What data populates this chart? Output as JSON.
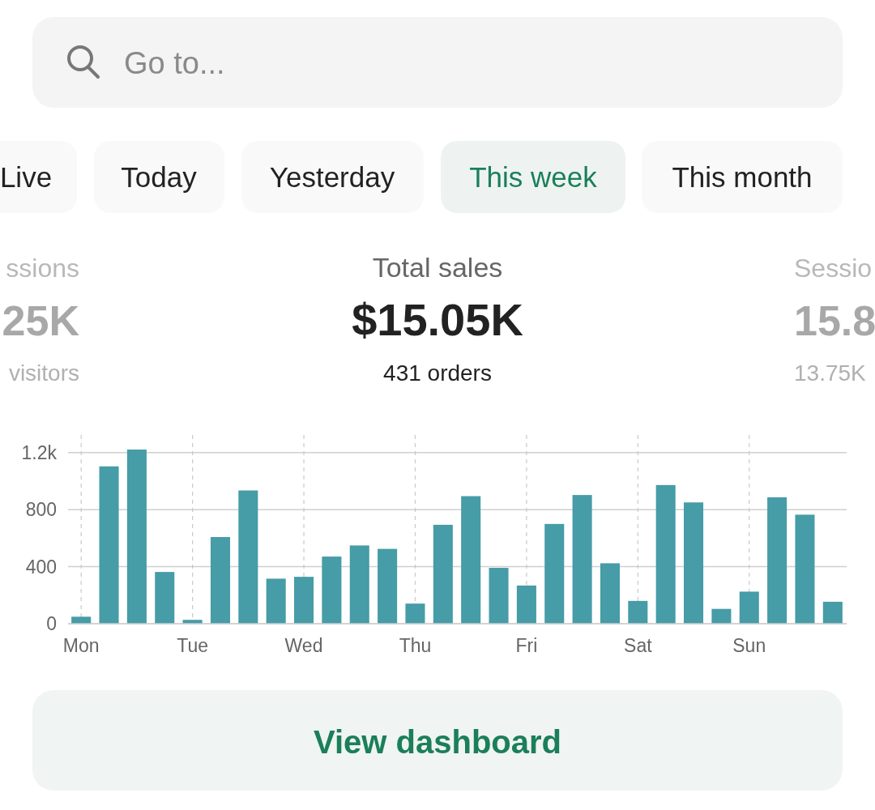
{
  "chart_data": {
    "type": "bar",
    "title": "Total sales",
    "subtitle": "$15.05K",
    "annotations": [
      "Go to...",
      "Live",
      "Today",
      "Yesterday",
      "This week",
      "This month",
      "ssions",
      "25K",
      "visitors",
      "Sessio",
      "15.8",
      "13.75K",
      "431 orders",
      "View dashboard"
    ],
    "categories": [
      "Mon",
      null,
      null,
      null,
      "Tue",
      null,
      null,
      null,
      "Wed",
      null,
      null,
      null,
      "Thu",
      null,
      null,
      null,
      "Fri",
      null,
      null,
      null,
      "Sat",
      null,
      null,
      null,
      "Sun",
      null,
      null,
      null
    ],
    "values": [
      49,
      1104,
      1222,
      363,
      27,
      608,
      935,
      316,
      329,
      471,
      549,
      525,
      141,
      694,
      895,
      392,
      268,
      700,
      903,
      424,
      160,
      973,
      851,
      104,
      225,
      887,
      765,
      154
    ],
    "color": "#469ca7",
    "ylim": [
      0,
      1222
    ],
    "yticks": [
      0,
      400,
      800,
      {
        "value": 1200,
        "label": "1.2k"
      }
    ],
    "grid": true
  }
}
